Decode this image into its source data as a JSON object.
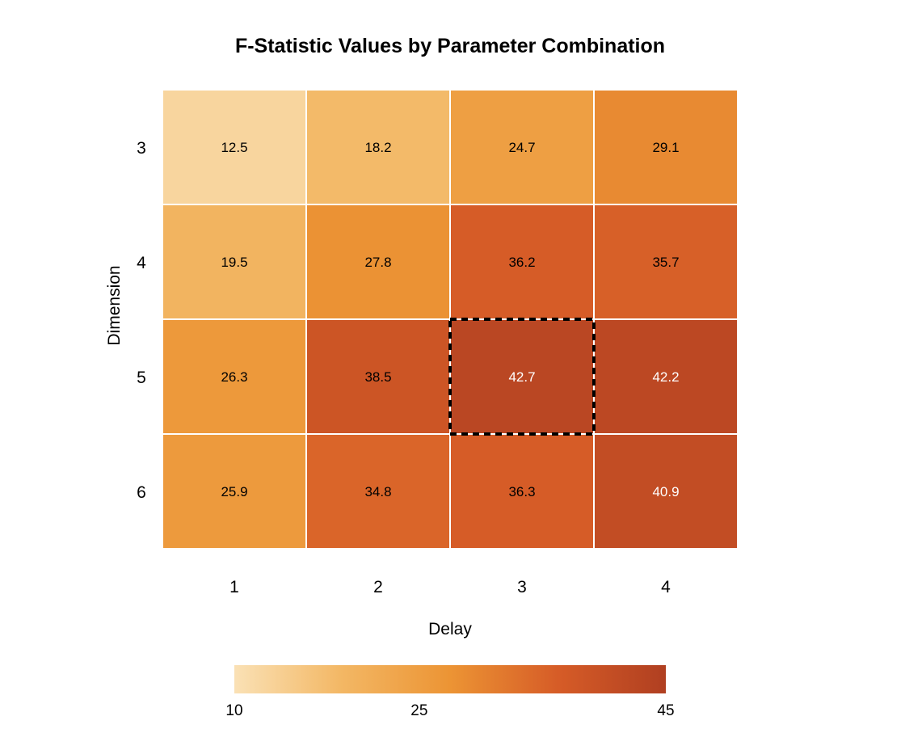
{
  "chart_data": {
    "type": "heatmap",
    "title": "F-Statistic Values by Parameter Combination",
    "xlabel": "Delay",
    "ylabel": "Dimension",
    "x_categories": [
      "1",
      "2",
      "3",
      "4"
    ],
    "y_categories": [
      "3",
      "4",
      "5",
      "6"
    ],
    "values": [
      [
        12.5,
        18.2,
        24.7,
        29.1
      ],
      [
        19.5,
        27.8,
        36.2,
        35.7
      ],
      [
        26.3,
        38.5,
        42.7,
        42.2
      ],
      [
        25.9,
        34.8,
        36.3,
        40.9
      ]
    ],
    "highlight": {
      "delay": "3",
      "dimension": "5"
    },
    "colorbar": {
      "min": 10,
      "max": 45,
      "ticks": [
        10,
        25,
        45
      ],
      "colors": [
        "#fae1b5",
        "#f3b764",
        "#ec9434",
        "#d65c27",
        "#b03f21"
      ]
    },
    "grid": false
  }
}
